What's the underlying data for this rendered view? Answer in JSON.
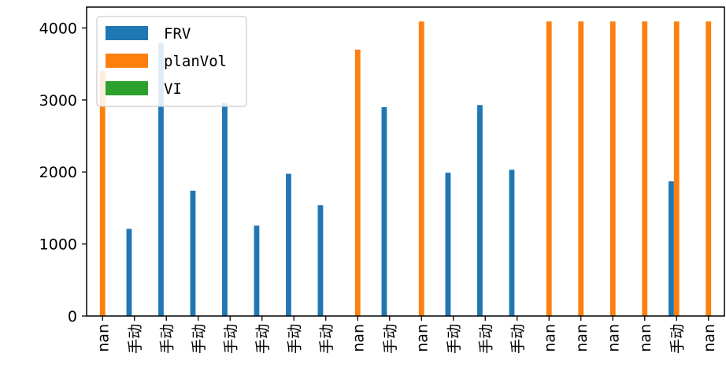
{
  "chart_data": {
    "type": "bar",
    "categories": [
      "nan",
      "手动",
      "手动",
      "手动",
      "手动",
      "手动",
      "手动",
      "手动",
      "nan",
      "手动",
      "nan",
      "手动",
      "手动",
      "手动",
      "nan",
      "nan",
      "nan",
      "nan",
      "手动",
      "nan"
    ],
    "series": [
      {
        "name": "FRV",
        "color": "#1f77b4",
        "values": [
          0,
          1210,
          3790,
          1740,
          2960,
          1255,
          1975,
          1540,
          0,
          2900,
          0,
          1990,
          2930,
          2030,
          0,
          0,
          0,
          0,
          1870,
          0
        ]
      },
      {
        "name": "planVol",
        "color": "#ff7f0e",
        "values": [
          3400,
          0,
          0,
          0,
          0,
          0,
          0,
          0,
          3700,
          0,
          4090,
          0,
          0,
          0,
          4090,
          4090,
          4090,
          4090,
          4090,
          4090
        ]
      },
      {
        "name": "VI",
        "color": "#2ca02c",
        "values": [
          0,
          0,
          0,
          0,
          0,
          0,
          0,
          0,
          0,
          0,
          0,
          0,
          0,
          0,
          0,
          0,
          0,
          0,
          0,
          0
        ]
      }
    ],
    "yticks": [
      0,
      1000,
      2000,
      3000,
      4000
    ],
    "ylim": [
      0,
      4290
    ],
    "legend": "top-left",
    "grid": false
  }
}
